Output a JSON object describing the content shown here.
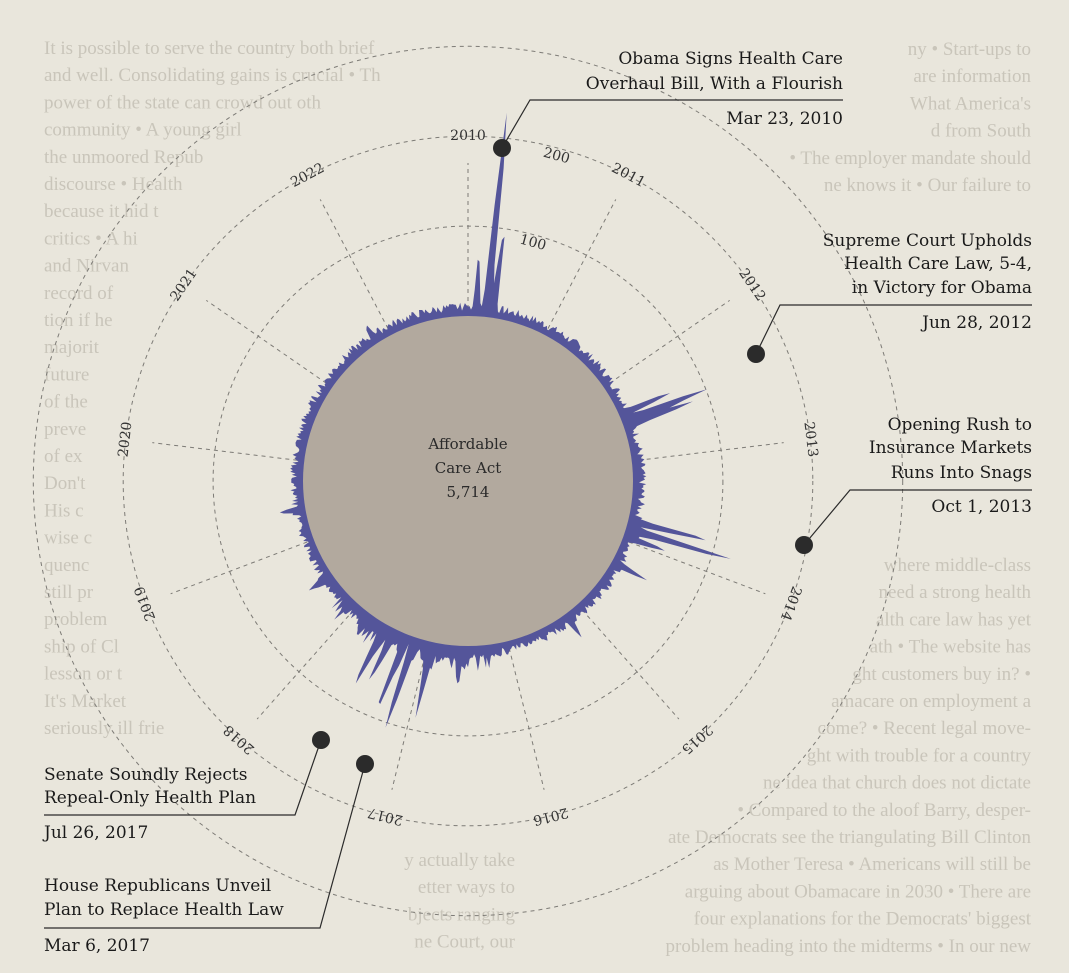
{
  "chart_data": {
    "type": "radial-area",
    "center_label": [
      "Affordable",
      "Care Act",
      "5,714"
    ],
    "radial_ticks": [
      "100",
      "200"
    ],
    "years": [
      "2010",
      "2011",
      "2012",
      "2013",
      "2014",
      "2015",
      "2016",
      "2017",
      "2018",
      "2019",
      "2020",
      "2021",
      "2022"
    ],
    "annotations": [
      {
        "title": [
          "Obama Signs Health Care",
          "Overhaul Bill, With a Flourish"
        ],
        "date": "Mar 23, 2010"
      },
      {
        "title": [
          "Supreme Court Upholds",
          "Health  Care Law, 5-4,",
          "in Victory for Obama"
        ],
        "date": "Jun 28, 2012"
      },
      {
        "title": [
          "Opening Rush to",
          "Insurance Markets",
          "Runs Into Snags"
        ],
        "date": "Oct 1, 2013"
      },
      {
        "title": [
          "Senate Soundly Rejects",
          "Repeal-Only Health Plan"
        ],
        "date": "Jul 26, 2017"
      },
      {
        "title": [
          "House Republicans Unveil",
          "Plan to Replace Health Law"
        ],
        "date": "Mar 6, 2017"
      }
    ],
    "series": [
      {
        "peaks": [
          {
            "t": 2010.22,
            "v": 220
          },
          {
            "t": 2010.3,
            "v": 90
          },
          {
            "t": 2010.1,
            "v": 60
          },
          {
            "t": 2012.49,
            "v": 95
          },
          {
            "t": 2012.55,
            "v": 70
          },
          {
            "t": 2012.4,
            "v": 55
          },
          {
            "t": 2013.75,
            "v": 85
          },
          {
            "t": 2013.85,
            "v": 110
          },
          {
            "t": 2013.95,
            "v": 40
          },
          {
            "t": 2016.95,
            "v": 60
          },
          {
            "t": 2017.17,
            "v": 85
          },
          {
            "t": 2017.28,
            "v": 75
          },
          {
            "t": 2017.56,
            "v": 55
          },
          {
            "t": 2017.45,
            "v": 40
          },
          {
            "t": 2016.6,
            "v": 25
          },
          {
            "t": 2014.3,
            "v": 35
          },
          {
            "t": 2015.2,
            "v": 20
          },
          {
            "t": 2018.5,
            "v": 25
          },
          {
            "t": 2019.4,
            "v": 18
          },
          {
            "t": 2021.8,
            "v": 15
          }
        ]
      }
    ]
  },
  "background_text": [
    "It is possible to serve the country both brief",
    "and well. Consolidating gains is crucial • Th",
    "power of the state can crowd out oth",
    "community • A young girl",
    "the unmoored Repub",
    "discourse • Health",
    "because it hid t",
    "critics • A hi",
    "and Nirvan",
    "record of",
    "tion if he",
    "majorit",
    "future",
    "of the",
    "preve",
    "of ex",
    "Don't",
    "His c",
    "wise c",
    "quenc",
    "still pr",
    "problem",
    "ship of Cl",
    "lesson or t",
    "It's Market",
    "seriously ill frie",
    "ny • Start-ups to",
    "are information",
    "What America's",
    "d from South",
    "• The employer mandate should",
    "ne knows it • Our failure to",
    "where middle-class",
    "need a strong health",
    "alth care law has yet",
    "ath • The website has",
    "ght customers buy in? •",
    "amacare on employment a",
    "come? • Recent legal move-",
    "ght with trouble for a country",
    "ne idea that church does not dictate",
    "• Compared to the aloof Barry, desper-",
    "ate Democrats see the triangulating Bill Clinton",
    "as Mother Teresa • Americans will still be",
    "arguing about Obamacare in 2030 • There are",
    "four explanations for the Democrats' biggest",
    "problem heading into the midterms • In our new",
    "y actually take",
    "etter ways to",
    "bjects ranging",
    "ne Court, our"
  ],
  "colors": {
    "background": "#e9e6dc",
    "area": "#54559a",
    "core": "#b2a99e",
    "marker": "#2b2b2b",
    "grid": "#7d7b76"
  }
}
